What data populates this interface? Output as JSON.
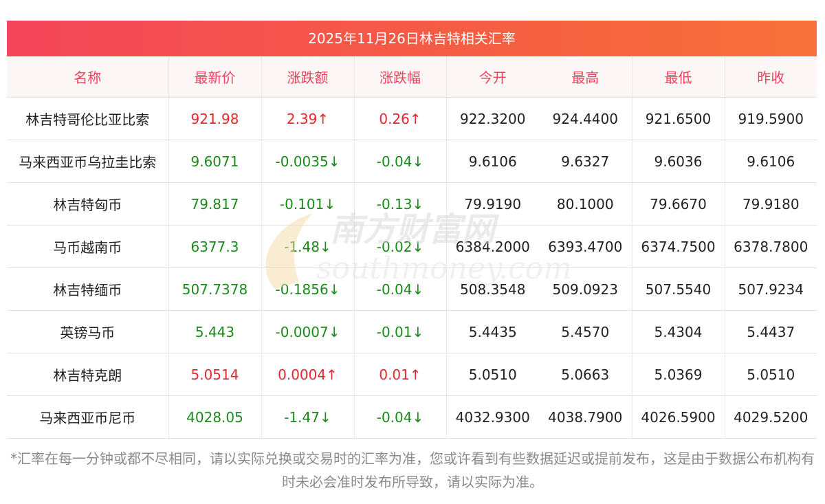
{
  "title": "2025年11月26日林吉特相关汇率",
  "columns": [
    "名称",
    "最新价",
    "涨跌额",
    "涨跌幅",
    "今开",
    "最高",
    "最低",
    "昨收"
  ],
  "rows": [
    {
      "name": "林吉特哥伦比亚比索",
      "latest": "921.98",
      "change": "2.39",
      "pct": "0.26",
      "dir": "up",
      "open": "922.3200",
      "high": "924.4400",
      "low": "921.6500",
      "prev": "919.5900"
    },
    {
      "name": "马来西亚币乌拉圭比索",
      "latest": "9.6071",
      "change": "-0.0035",
      "pct": "-0.04",
      "dir": "down",
      "open": "9.6106",
      "high": "9.6327",
      "low": "9.6036",
      "prev": "9.6106"
    },
    {
      "name": "林吉特匈币",
      "latest": "79.817",
      "change": "-0.101",
      "pct": "-0.13",
      "dir": "down",
      "open": "79.9190",
      "high": "80.1000",
      "low": "79.6670",
      "prev": "79.9180"
    },
    {
      "name": "马币越南币",
      "latest": "6377.3",
      "change": "-1.48",
      "pct": "-0.02",
      "dir": "down",
      "open": "6384.2000",
      "high": "6393.4700",
      "low": "6374.7500",
      "prev": "6378.7800"
    },
    {
      "name": "林吉特缅币",
      "latest": "507.7378",
      "change": "-0.1856",
      "pct": "-0.04",
      "dir": "down",
      "open": "508.3548",
      "high": "509.0923",
      "low": "507.5540",
      "prev": "507.9234"
    },
    {
      "name": "英镑马币",
      "latest": "5.443",
      "change": "-0.0007",
      "pct": "-0.01",
      "dir": "down",
      "open": "5.4435",
      "high": "5.4570",
      "low": "5.4304",
      "prev": "5.4437"
    },
    {
      "name": "林吉特克朗",
      "latest": "5.0514",
      "change": "0.0004",
      "pct": "0.01",
      "dir": "up",
      "open": "5.0510",
      "high": "5.0663",
      "low": "5.0369",
      "prev": "5.0510"
    },
    {
      "name": "马来西亚币尼币",
      "latest": "4028.05",
      "change": "-1.47",
      "pct": "-0.04",
      "dir": "down",
      "open": "4032.9300",
      "high": "4038.7900",
      "low": "4026.5900",
      "prev": "4029.5200"
    }
  ],
  "arrows": {
    "up": "↑",
    "down": "↓"
  },
  "watermark": {
    "cn": "南方财富网",
    "en": "southmoney.com"
  },
  "note": "*汇率在每一分钟或都不尽相同，请以实际兑换或交易时的汇率为准，您或许看到有些数据延迟或提前发布，这是由于数据公布机构有时未必会准时发布所导致，请以实际为准。",
  "colors": {
    "up": "#e8262c",
    "down": "#1a8a1a",
    "header_text": "#f0405a",
    "title_bg_start": "#f4465b",
    "title_bg_end": "#f7713a"
  }
}
